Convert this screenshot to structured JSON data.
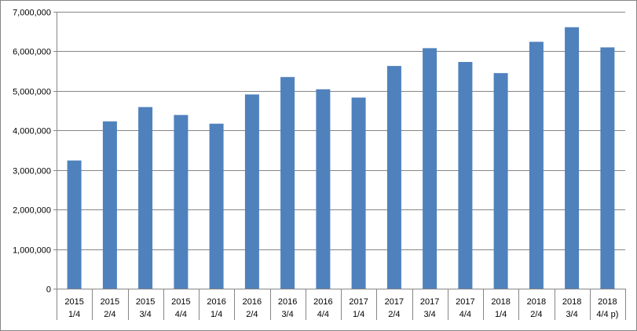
{
  "chart_data": {
    "type": "bar",
    "title": "",
    "xlabel": "",
    "ylabel": "",
    "ylim": [
      0,
      7000000
    ],
    "yticks": [
      0,
      1000000,
      2000000,
      3000000,
      4000000,
      5000000,
      6000000,
      7000000
    ],
    "ytick_labels": [
      "0",
      "1,000,000",
      "2,000,000",
      "3,000,000",
      "4,000,000",
      "5,000,000",
      "6,000,000",
      "7,000,000"
    ],
    "grid": true,
    "legend": "none",
    "bar_color": "#4f81bd",
    "categories": [
      [
        "2015",
        "1/4"
      ],
      [
        "2015",
        "2/4"
      ],
      [
        "2015",
        "3/4"
      ],
      [
        "2015",
        "4/4"
      ],
      [
        "2016",
        "1/4"
      ],
      [
        "2016",
        "2/4"
      ],
      [
        "2016",
        "3/4"
      ],
      [
        "2016",
        "4/4"
      ],
      [
        "2017",
        "1/4"
      ],
      [
        "2017",
        "2/4"
      ],
      [
        "2017",
        "3/4"
      ],
      [
        "2017",
        "4/4"
      ],
      [
        "2018",
        "1/4"
      ],
      [
        "2018",
        "2/4"
      ],
      [
        "2018",
        "3/4"
      ],
      [
        "2018",
        "4/4 p)"
      ]
    ],
    "values": [
      3240000,
      4230000,
      4590000,
      4390000,
      4170000,
      4910000,
      5350000,
      5040000,
      4830000,
      5630000,
      6080000,
      5730000,
      5450000,
      6240000,
      6610000,
      6100000
    ]
  }
}
